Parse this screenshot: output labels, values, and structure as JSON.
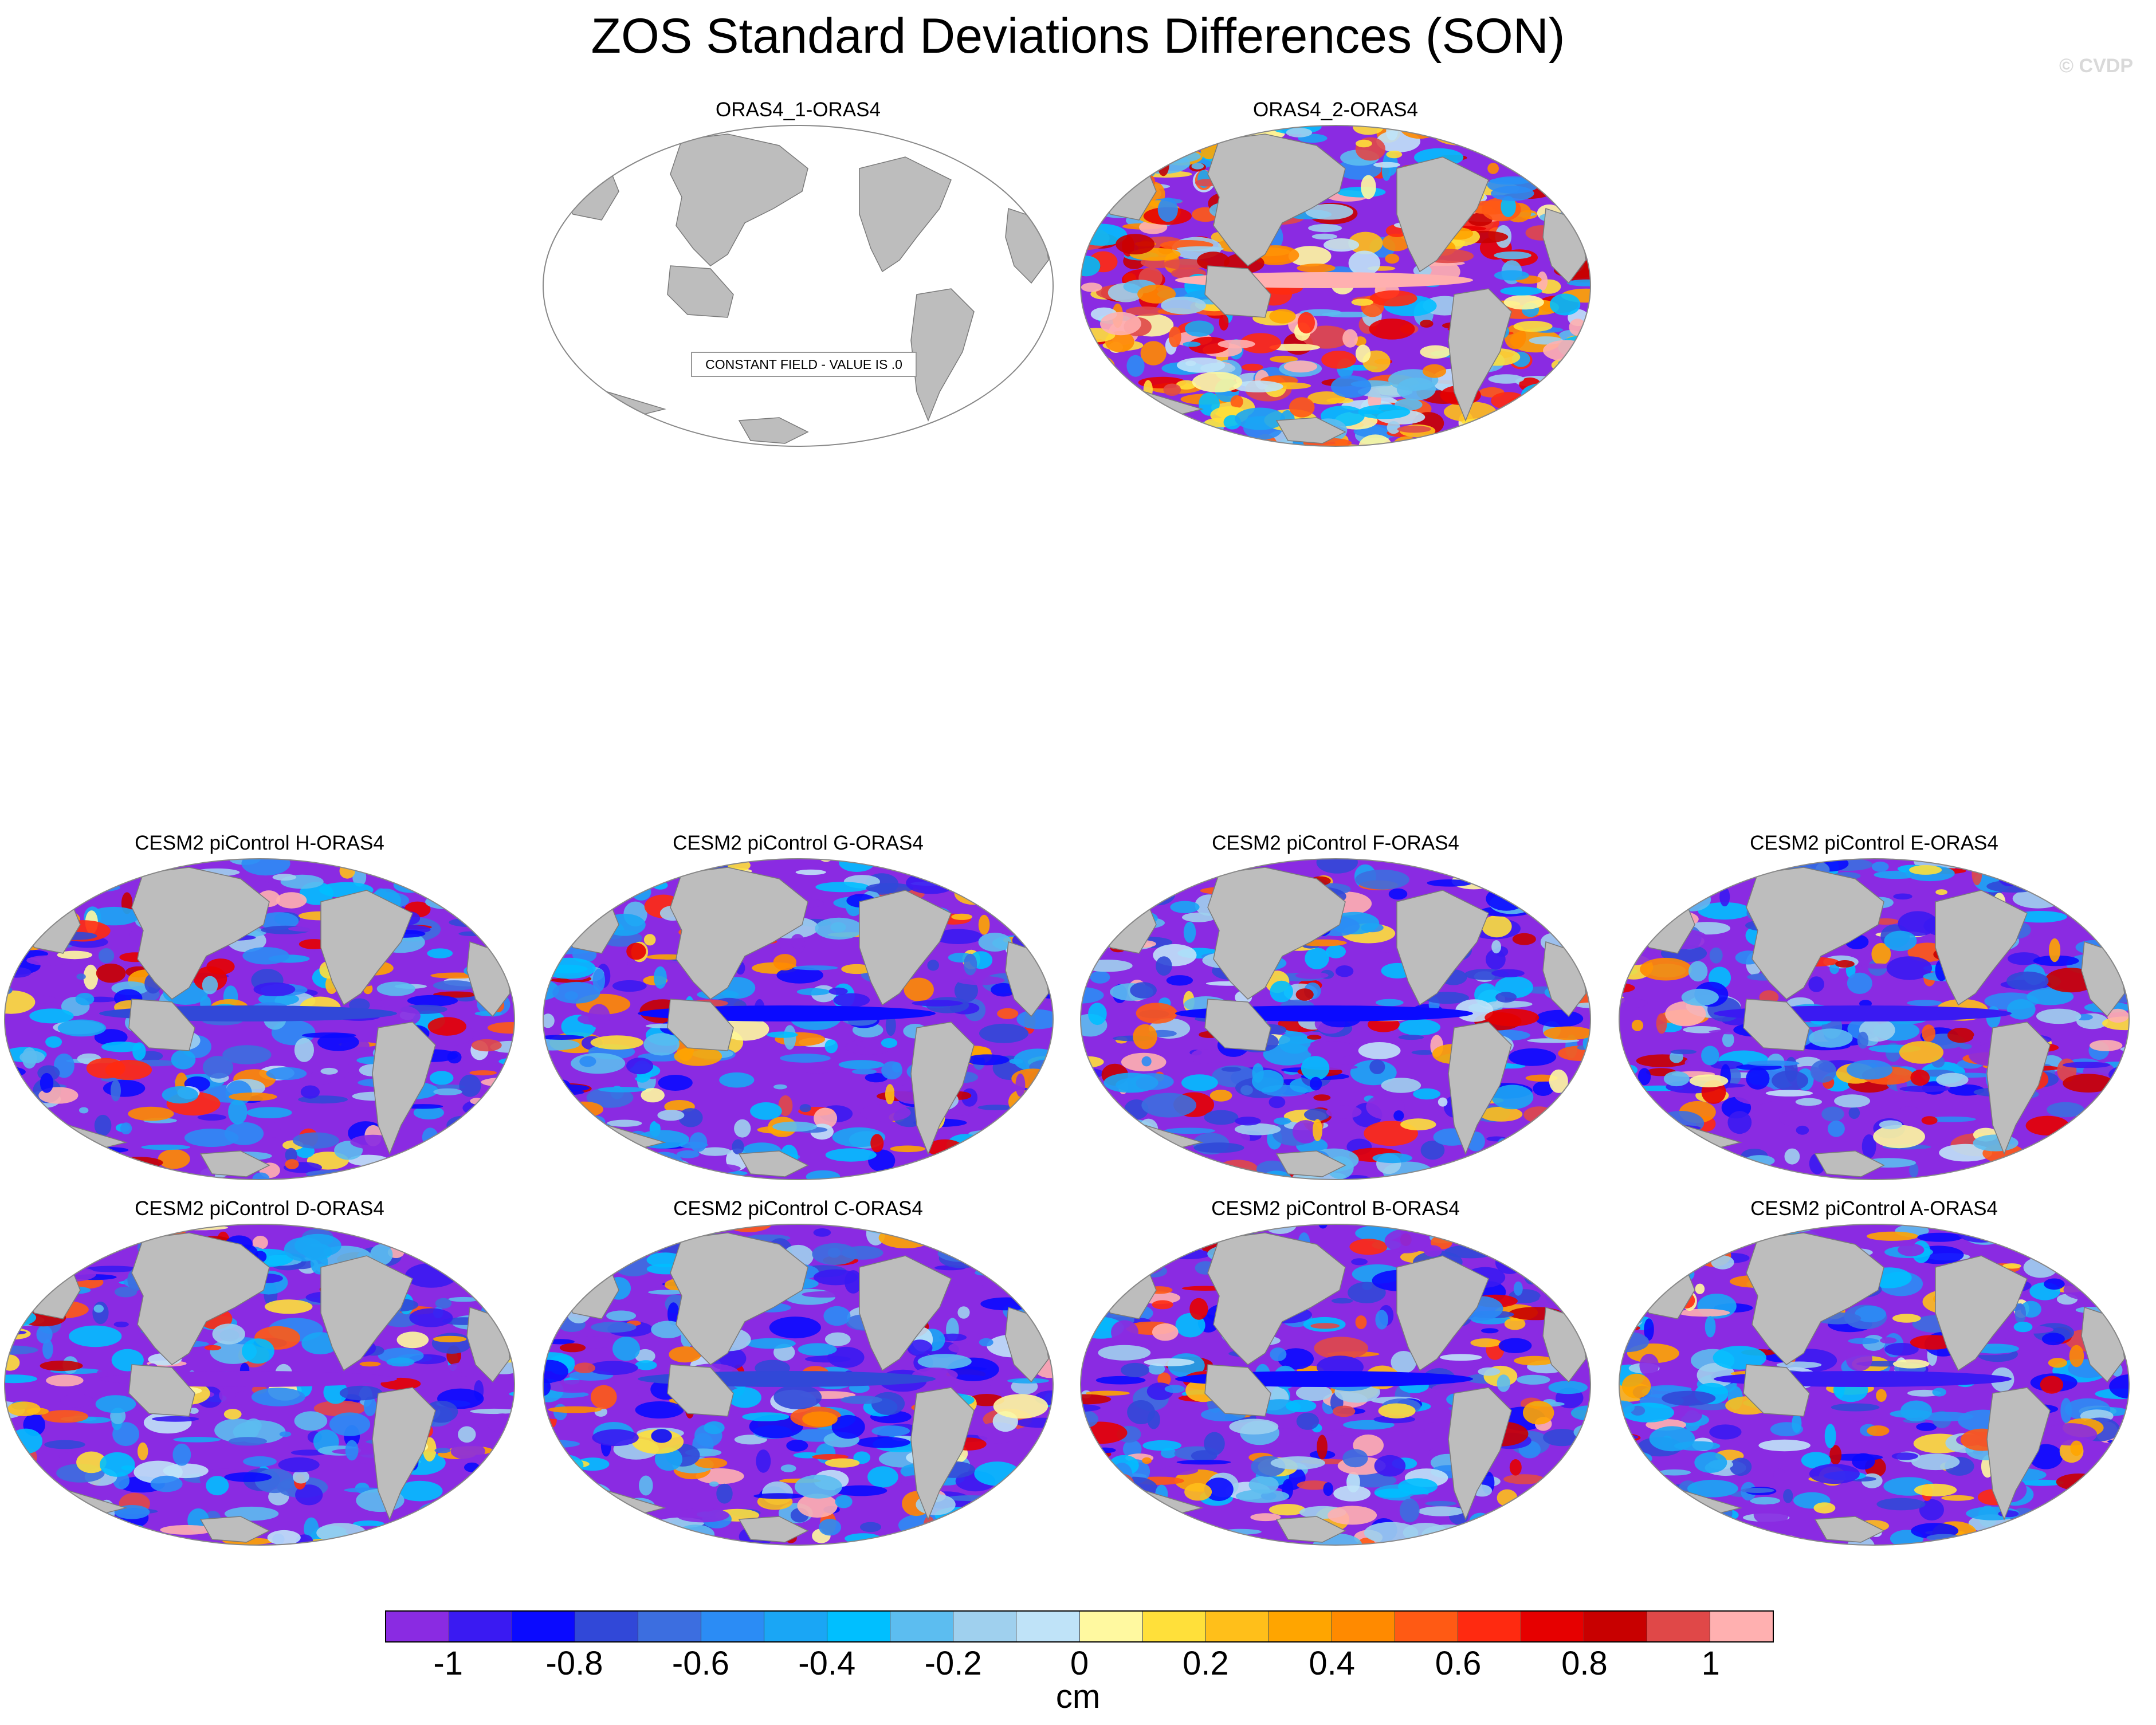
{
  "title": "ZOS Standard Deviations Differences (SON)",
  "watermark": "© CVDP",
  "panels": [
    {
      "label": "ORAS4_1-ORAS4",
      "constant_note": "CONSTANT FIELD - VALUE IS .0",
      "style": "blank"
    },
    {
      "label": "ORAS4_2-ORAS4",
      "style": "obs"
    },
    {
      "label": "CESM2 piControl H-ORAS4",
      "style": "model"
    },
    {
      "label": "CESM2 piControl G-ORAS4",
      "style": "model"
    },
    {
      "label": "CESM2 piControl F-ORAS4",
      "style": "model"
    },
    {
      "label": "CESM2 piControl E-ORAS4",
      "style": "model"
    },
    {
      "label": "CESM2 piControl D-ORAS4",
      "style": "model"
    },
    {
      "label": "CESM2 piControl C-ORAS4",
      "style": "model"
    },
    {
      "label": "CESM2 piControl B-ORAS4",
      "style": "model"
    },
    {
      "label": "CESM2 piControl A-ORAS4",
      "style": "model"
    }
  ],
  "colorbar": {
    "colors": [
      "#8a2be2",
      "#3a1af2",
      "#0a0aff",
      "#3148d8",
      "#3c6ee0",
      "#2b8cf5",
      "#1aa6f5",
      "#00bfff",
      "#5cbdf0",
      "#9fd0ee",
      "#bfe3f8",
      "#fff9a0",
      "#ffe03a",
      "#ffbf1a",
      "#ffa500",
      "#ff8a00",
      "#ff5a14",
      "#ff2a10",
      "#e60000",
      "#c80000",
      "#e04848",
      "#ffb0b0"
    ],
    "ticks": [
      "-1",
      "-0.8",
      "-0.6",
      "-0.4",
      "-0.2",
      "0",
      "0.2",
      "0.4",
      "0.6",
      "0.8",
      "1"
    ],
    "units": "cm"
  }
}
